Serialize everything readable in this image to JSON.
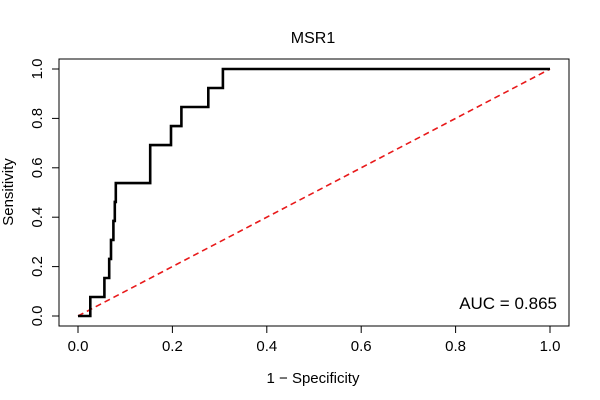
{
  "chart_data": {
    "type": "line",
    "title": "MSR1",
    "xlabel": "1 − Specificity",
    "ylabel": "Sensitivity",
    "xlim": [
      0,
      1
    ],
    "ylim": [
      0,
      1
    ],
    "x_ticks": [
      0.0,
      0.2,
      0.4,
      0.6,
      0.8,
      1.0
    ],
    "x_tick_labels": [
      "0.0",
      "0.2",
      "0.4",
      "0.6",
      "0.8",
      "1.0"
    ],
    "y_ticks": [
      0.0,
      0.2,
      0.4,
      0.6,
      0.8,
      1.0
    ],
    "y_tick_labels": [
      "0.0",
      "0.2",
      "0.4",
      "0.6",
      "0.8",
      "1.0"
    ],
    "grid": false,
    "annotation": "AUC = 0.865",
    "series": [
      {
        "color": "#000000",
        "style": "solid",
        "x": [
          0.0,
          0.026,
          0.026,
          0.056,
          0.056,
          0.066,
          0.066,
          0.07,
          0.07,
          0.075,
          0.075,
          0.078,
          0.078,
          0.08,
          0.08,
          0.153,
          0.153,
          0.197,
          0.197,
          0.219,
          0.219,
          0.276,
          0.276,
          0.307,
          0.307,
          1.0
        ],
        "y": [
          0.0,
          0.0,
          0.077,
          0.077,
          0.154,
          0.154,
          0.231,
          0.231,
          0.308,
          0.308,
          0.385,
          0.385,
          0.462,
          0.462,
          0.538,
          0.538,
          0.692,
          0.692,
          0.769,
          0.769,
          0.846,
          0.846,
          0.923,
          0.923,
          1.0,
          1.0
        ]
      },
      {
        "color": "#e8191a",
        "style": "dashed",
        "x": [
          0.0,
          1.0
        ],
        "y": [
          0.0,
          1.0
        ]
      }
    ]
  }
}
